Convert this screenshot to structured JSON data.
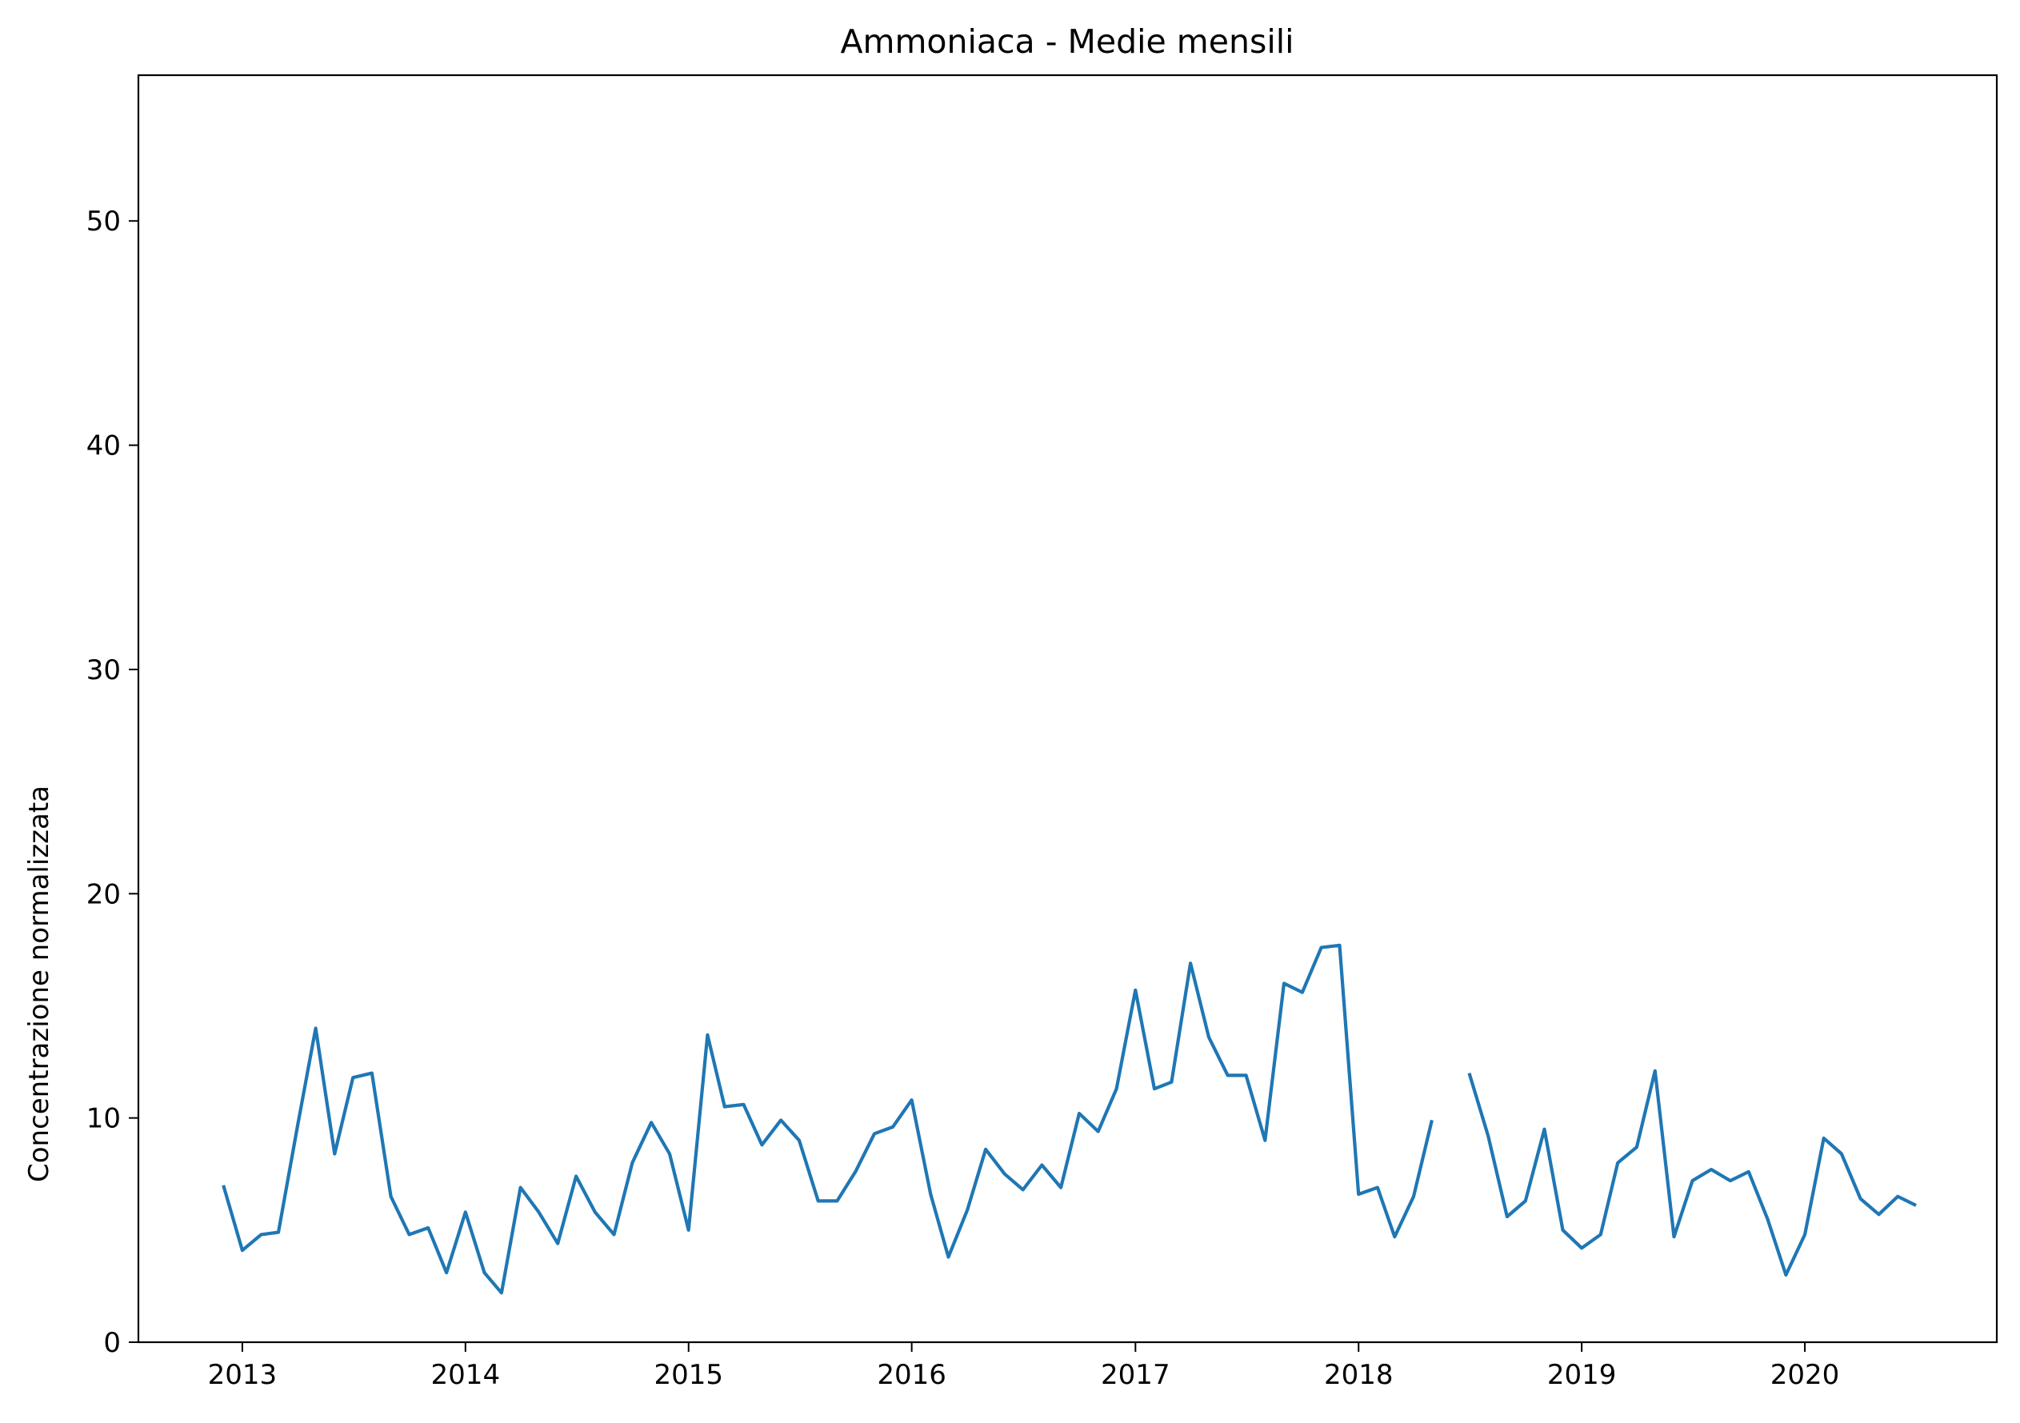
{
  "chart_data": {
    "type": "line",
    "title": "Ammoniaca - Medie mensili",
    "xlabel": "",
    "ylabel": "Concentrazione normalizzata",
    "ylim": [
      0,
      56.5
    ],
    "xlim": [
      "2012-07-15",
      "2020-11-10"
    ],
    "grid": false,
    "legend": "none",
    "x_ticks": [
      "2013",
      "2014",
      "2015",
      "2016",
      "2017",
      "2018",
      "2019",
      "2020"
    ],
    "y_ticks": [
      0,
      10,
      20,
      30,
      40,
      50
    ],
    "line_color": "#1f77b4",
    "series": [
      {
        "x": [
          "2012-12",
          "2013-01",
          "2013-02",
          "2013-03",
          "2013-04",
          "2013-05",
          "2013-06",
          "2013-07",
          "2013-08",
          "2013-09",
          "2013-10",
          "2013-11",
          "2013-12",
          "2014-01",
          "2014-02",
          "2014-03",
          "2014-04",
          "2014-05",
          "2014-06",
          "2014-07",
          "2014-08",
          "2014-09",
          "2014-10",
          "2014-11",
          "2014-12",
          "2015-01",
          "2015-02",
          "2015-03",
          "2015-04",
          "2015-05",
          "2015-06",
          "2015-07",
          "2015-08",
          "2015-09",
          "2015-10",
          "2015-11",
          "2015-12",
          "2016-01",
          "2016-02",
          "2016-03",
          "2016-04",
          "2016-05",
          "2016-06",
          "2016-07",
          "2016-08",
          "2016-09",
          "2016-10",
          "2016-11",
          "2016-12",
          "2017-01",
          "2017-02",
          "2017-03",
          "2017-04",
          "2017-05",
          "2017-06",
          "2017-07",
          "2017-08",
          "2017-09",
          "2017-10",
          "2017-11",
          "2017-12",
          "2018-01",
          "2018-02",
          "2018-03",
          "2018-04",
          "2018-05",
          "2018-06",
          "2018-07",
          "2018-08",
          "2018-09",
          "2018-10",
          "2018-11",
          "2018-12",
          "2019-01",
          "2019-02",
          "2019-03",
          "2019-04",
          "2019-05",
          "2019-06",
          "2019-07",
          "2019-08",
          "2019-09",
          "2019-10",
          "2019-11",
          "2019-12",
          "2020-01",
          "2020-02",
          "2020-03",
          "2020-04",
          "2020-05",
          "2020-06",
          "2020-07"
        ],
        "values": [
          7.0,
          4.1,
          4.8,
          4.9,
          9.6,
          14.0,
          8.4,
          11.8,
          12.0,
          6.5,
          4.8,
          5.1,
          3.1,
          5.8,
          3.1,
          2.2,
          6.9,
          5.8,
          4.4,
          7.4,
          5.8,
          4.8,
          8.0,
          9.8,
          8.4,
          5.0,
          13.7,
          10.5,
          10.6,
          8.8,
          9.9,
          9.0,
          6.3,
          6.3,
          7.6,
          9.3,
          9.6,
          10.8,
          6.6,
          3.8,
          5.9,
          8.6,
          7.5,
          6.8,
          7.9,
          6.9,
          10.2,
          9.4,
          11.3,
          15.7,
          11.3,
          11.6,
          16.9,
          13.6,
          11.9,
          11.9,
          9.0,
          16.0,
          15.6,
          17.6,
          17.7,
          6.6,
          6.9,
          4.7,
          6.5,
          9.9,
          null,
          12.0,
          9.2,
          5.6,
          6.3,
          9.5,
          5.0,
          4.2,
          4.8,
          8.0,
          8.7,
          12.1,
          4.7,
          7.2,
          7.7,
          7.2,
          7.6,
          5.5,
          3.0,
          4.8,
          9.1,
          8.4,
          6.4,
          5.7,
          6.5,
          6.1
        ]
      }
    ]
  }
}
